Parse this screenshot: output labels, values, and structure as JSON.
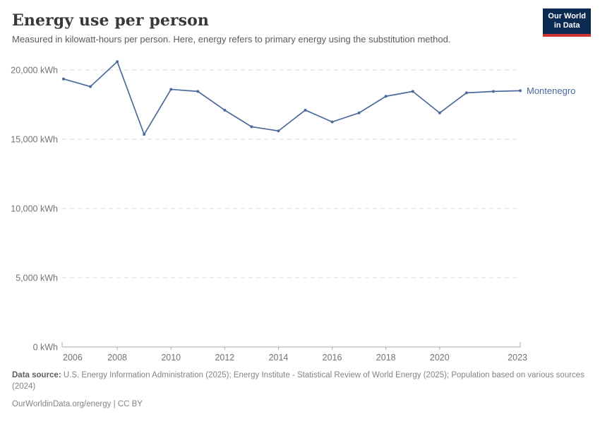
{
  "header": {
    "title": "Energy use per person",
    "subtitle": "Measured in kilowatt-hours per person. Here, energy refers to primary energy using the substitution method.",
    "logo": {
      "line1": "Our World",
      "line2": "in Data",
      "bg_color": "#0A2A52",
      "accent_color": "#CC3333"
    }
  },
  "chart_data": {
    "type": "line",
    "title": "Energy use per person",
    "unit": "kWh",
    "x": [
      2006,
      2007,
      2008,
      2009,
      2010,
      2011,
      2012,
      2013,
      2014,
      2015,
      2016,
      2017,
      2018,
      2019,
      2020,
      2021,
      2022,
      2023
    ],
    "series": [
      {
        "name": "Montenegro",
        "color": "#4C6A9C",
        "values": [
          19350,
          18800,
          20600,
          15350,
          18600,
          18450,
          17100,
          15900,
          15600,
          17100,
          16250,
          16900,
          18100,
          18450,
          16900,
          18350,
          18450,
          18500
        ]
      }
    ],
    "ylim": [
      0,
      20600
    ],
    "yticks": [
      {
        "value": 0,
        "label": "0 kWh"
      },
      {
        "value": 5000,
        "label": "5,000 kWh"
      },
      {
        "value": 10000,
        "label": "10,000 kWh"
      },
      {
        "value": 15000,
        "label": "15,000 kWh"
      },
      {
        "value": 20000,
        "label": "20,000 kWh"
      }
    ],
    "xticks": [
      2006,
      2008,
      2010,
      2012,
      2014,
      2016,
      2018,
      2020,
      2023
    ],
    "grid": "horizontal-dashed",
    "legend_position": "right-of-last-point"
  },
  "footer": {
    "source_label": "Data source:",
    "source_text": "U.S. Energy Information Administration (2025); Energy Institute - Statistical Review of World Energy (2025); Population based on various sources (2024)",
    "url": "OurWorldinData.org/energy",
    "separator": "|",
    "license": "CC BY"
  }
}
